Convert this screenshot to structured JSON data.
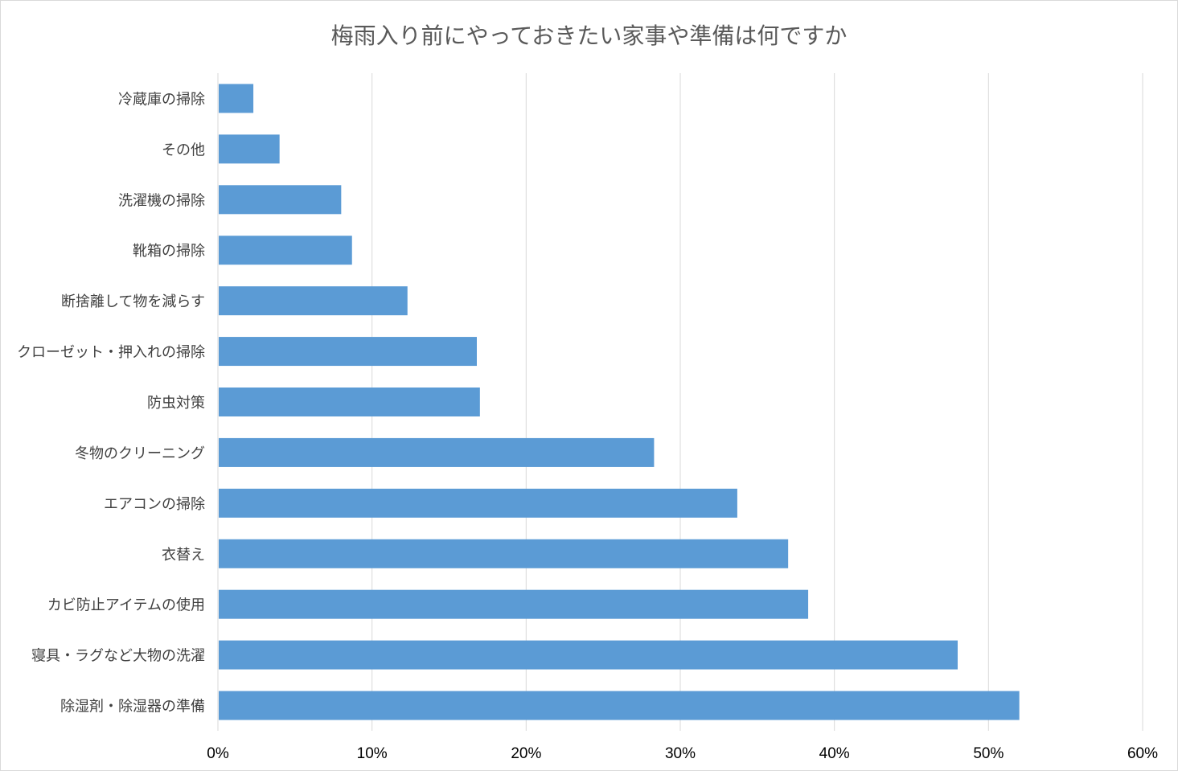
{
  "chart_data": {
    "type": "bar",
    "orientation": "horizontal",
    "title": "梅雨入り前にやっておきたい家事や準備は何ですか",
    "categories": [
      "冷蔵庫の掃除",
      "その他",
      "洗濯機の掃除",
      "靴箱の掃除",
      "断捨離して物を減らす",
      "クローゼット・押入れの掃除",
      "防虫対策",
      "冬物のクリーニング",
      "エアコンの掃除",
      "衣替え",
      "カビ防止アイテムの使用",
      "寝具・ラグなど大物の洗濯",
      "除湿剤・除湿器の準備"
    ],
    "values": [
      2.3,
      4.0,
      8.0,
      8.7,
      12.3,
      16.8,
      17.0,
      28.3,
      33.7,
      37.0,
      38.3,
      48.0,
      52.0
    ],
    "xlim": [
      0,
      60
    ],
    "x_ticks": [
      "0%",
      "10%",
      "20%",
      "30%",
      "40%",
      "50%",
      "60%"
    ],
    "x_tick_values": [
      0,
      10,
      20,
      30,
      40,
      50,
      60
    ],
    "grid": "vertical",
    "legend": "none",
    "bar_color": "#5b9bd5",
    "grid_color": "#d9d9d9"
  }
}
